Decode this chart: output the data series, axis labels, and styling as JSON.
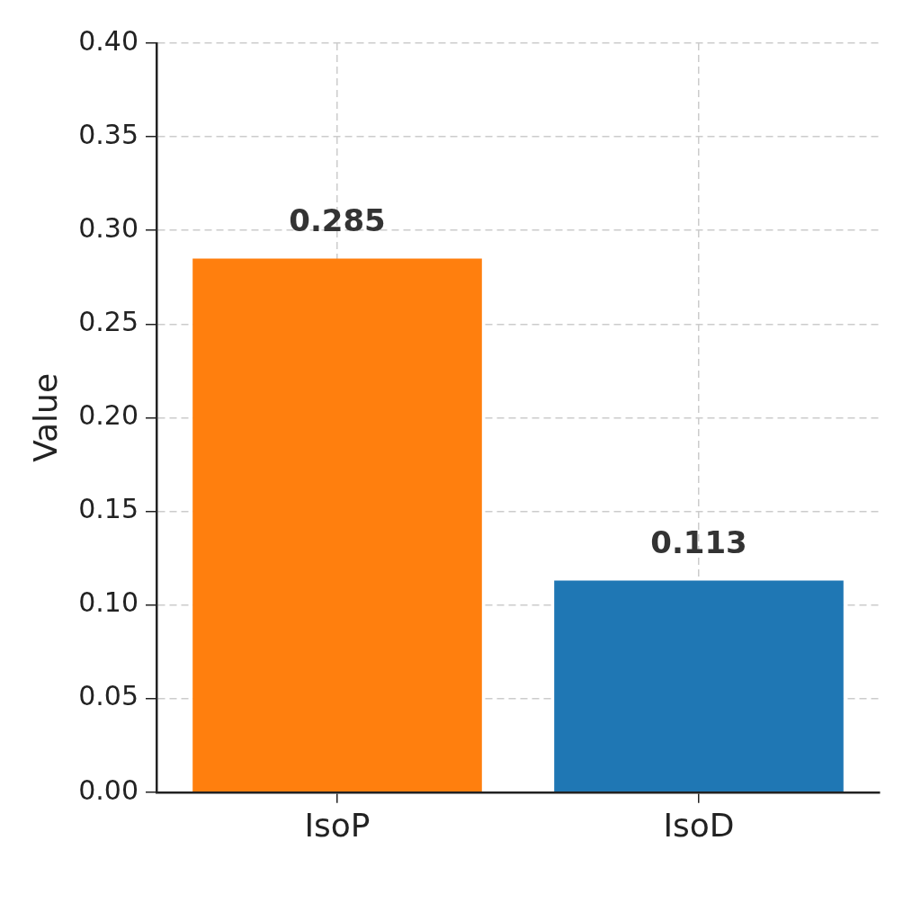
{
  "chart_data": {
    "type": "bar",
    "ylabel": "Value",
    "categories": [
      "IsoP",
      "IsoD"
    ],
    "values": [
      0.285,
      0.113
    ],
    "colors": [
      "#ff7f0e",
      "#1f77b4"
    ],
    "ylim": [
      0,
      0.4
    ],
    "yticks": [
      {
        "value": 0,
        "label": "0.00"
      },
      {
        "value": 0.05,
        "label": "0.05"
      },
      {
        "value": 0.1,
        "label": "0.10"
      },
      {
        "value": 0.15,
        "label": "0.15"
      },
      {
        "value": 0.2,
        "label": "0.20"
      },
      {
        "value": 0.25,
        "label": "0.25"
      },
      {
        "value": 0.3,
        "label": "0.30"
      },
      {
        "value": 0.35,
        "label": "0.35"
      },
      {
        "value": 0.4,
        "label": "0.40"
      }
    ],
    "grid": true,
    "data_labels": true,
    "legend": false
  }
}
